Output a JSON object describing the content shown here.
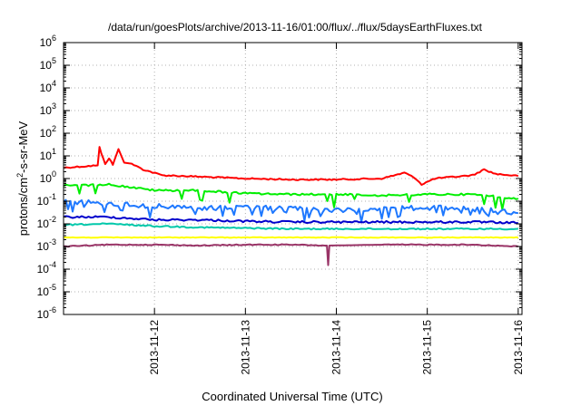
{
  "chart_data": {
    "type": "line",
    "title": "/data/run/goesPlots/archive/2013-11-16/01:00/flux/../flux/5daysEarthFluxes.txt",
    "xlabel": "Coordinated Universal Time (UTC)",
    "ylabel_main": "protons/cm",
    "ylabel_sup": "2",
    "ylabel_rest": "-s-sr-MeV",
    "yscale": "log",
    "ylim": [
      1e-06,
      1000000.0
    ],
    "xlim": [
      "2013-11-11T00:00",
      "2013-11-16T01:00"
    ],
    "grid": true,
    "x_ticks": [
      "2013-11-12",
      "2013-11-13",
      "2013-11-14",
      "2013-11-15",
      "2013-11-16"
    ],
    "y_ticks": [
      {
        "base": "10",
        "exp": "6"
      },
      {
        "base": "10",
        "exp": "5"
      },
      {
        "base": "10",
        "exp": "4"
      },
      {
        "base": "10",
        "exp": "3"
      },
      {
        "base": "10",
        "exp": "2"
      },
      {
        "base": "10",
        "exp": "1"
      },
      {
        "base": "10",
        "exp": "0"
      },
      {
        "base": "10",
        "exp": "-1"
      },
      {
        "base": "10",
        "exp": "-2"
      },
      {
        "base": "10",
        "exp": "-3"
      },
      {
        "base": "10",
        "exp": "-4"
      },
      {
        "base": "10",
        "exp": "-5"
      },
      {
        "base": "10",
        "exp": "-6"
      }
    ],
    "series": [
      {
        "color": "#ff0000",
        "points": [
          [
            "2013-11-11T00:00",
            3.0
          ],
          [
            "2013-11-11T06:00",
            3.5
          ],
          [
            "2013-11-11T09:00",
            3.8
          ],
          [
            "2013-11-11T09:30",
            25
          ],
          [
            "2013-11-11T10:00",
            12
          ],
          [
            "2013-11-11T11:00",
            4.5
          ],
          [
            "2013-11-11T12:00",
            8
          ],
          [
            "2013-11-11T13:00",
            4
          ],
          [
            "2013-11-11T14:30",
            20
          ],
          [
            "2013-11-11T16:00",
            5
          ],
          [
            "2013-11-11T18:00",
            4.5
          ],
          [
            "2013-11-11T21:00",
            2.5
          ],
          [
            "2013-11-12T02:00",
            1.4
          ],
          [
            "2013-11-12T12:00",
            1.2
          ],
          [
            "2013-11-13T00:00",
            1.0
          ],
          [
            "2013-11-13T12:00",
            0.9
          ],
          [
            "2013-11-14T00:00",
            0.9
          ],
          [
            "2013-11-14T12:00",
            1.0
          ],
          [
            "2013-11-14T18:00",
            1.8
          ],
          [
            "2013-11-14T21:00",
            1.0
          ],
          [
            "2013-11-14T22:30",
            0.55
          ],
          [
            "2013-11-15T02:00",
            1.0
          ],
          [
            "2013-11-15T12:00",
            1.4
          ],
          [
            "2013-11-15T15:00",
            2.5
          ],
          [
            "2013-11-15T18:00",
            1.6
          ],
          [
            "2013-11-16T00:00",
            1.3
          ]
        ]
      },
      {
        "color": "#00ee00",
        "points": [
          [
            "2013-11-11T00:00",
            0.5
          ],
          [
            "2013-11-11T12:00",
            0.55
          ],
          [
            "2013-11-12T00:00",
            0.3
          ],
          [
            "2013-11-12T12:00",
            0.3
          ],
          [
            "2013-11-13T00:00",
            0.22
          ],
          [
            "2013-11-13T12:00",
            0.2
          ],
          [
            "2013-11-14T00:00",
            0.2
          ],
          [
            "2013-11-14T12:00",
            0.18
          ],
          [
            "2013-11-15T00:00",
            0.2
          ],
          [
            "2013-11-15T12:00",
            0.2
          ],
          [
            "2013-11-16T00:00",
            0.13
          ]
        ]
      },
      {
        "color": "#1e78ff",
        "points": [
          [
            "2013-11-11T00:00",
            0.1
          ],
          [
            "2013-11-11T12:00",
            0.08
          ],
          [
            "2013-11-12T00:00",
            0.06
          ],
          [
            "2013-11-12T12:00",
            0.05
          ],
          [
            "2013-11-13T00:00",
            0.05
          ],
          [
            "2013-11-13T12:00",
            0.05
          ],
          [
            "2013-11-14T00:00",
            0.04
          ],
          [
            "2013-11-14T12:00",
            0.05
          ],
          [
            "2013-11-15T00:00",
            0.05
          ],
          [
            "2013-11-15T12:00",
            0.05
          ],
          [
            "2013-11-16T00:00",
            0.03
          ]
        ]
      },
      {
        "color": "#0000cc",
        "points": [
          [
            "2013-11-11T00:00",
            0.02
          ],
          [
            "2013-11-11T12:00",
            0.02
          ],
          [
            "2013-11-12T00:00",
            0.015
          ],
          [
            "2013-11-12T12:00",
            0.015
          ],
          [
            "2013-11-13T00:00",
            0.013
          ],
          [
            "2013-11-13T12:00",
            0.012
          ],
          [
            "2013-11-14T00:00",
            0.012
          ],
          [
            "2013-11-14T12:00",
            0.012
          ],
          [
            "2013-11-15T00:00",
            0.012
          ],
          [
            "2013-11-15T12:00",
            0.012
          ],
          [
            "2013-11-16T00:00",
            0.011
          ]
        ]
      },
      {
        "color": "#00c8aa",
        "points": [
          [
            "2013-11-11T00:00",
            0.009
          ],
          [
            "2013-11-11T12:00",
            0.01
          ],
          [
            "2013-11-12T00:00",
            0.008
          ],
          [
            "2013-11-12T12:00",
            0.007
          ],
          [
            "2013-11-13T00:00",
            0.0065
          ],
          [
            "2013-11-13T12:00",
            0.006
          ],
          [
            "2013-11-14T00:00",
            0.006
          ],
          [
            "2013-11-14T12:00",
            0.006
          ],
          [
            "2013-11-15T00:00",
            0.006
          ],
          [
            "2013-11-15T12:00",
            0.006
          ],
          [
            "2013-11-16T00:00",
            0.006
          ]
        ]
      },
      {
        "color": "#ffff00",
        "points": [
          [
            "2013-11-11T00:00",
            0.0025
          ],
          [
            "2013-11-12T00:00",
            0.0025
          ],
          [
            "2013-11-13T00:00",
            0.0025
          ],
          [
            "2013-11-14T00:00",
            0.0025
          ],
          [
            "2013-11-15T00:00",
            0.0025
          ],
          [
            "2013-11-16T00:00",
            0.0025
          ]
        ]
      },
      {
        "color": "#993366",
        "points": [
          [
            "2013-11-11T00:00",
            0.001
          ],
          [
            "2013-11-11T12:00",
            0.0012
          ],
          [
            "2013-11-12T00:00",
            0.0012
          ],
          [
            "2013-11-12T12:00",
            0.0011
          ],
          [
            "2013-11-13T00:00",
            0.0012
          ],
          [
            "2013-11-13T12:00",
            0.0012
          ],
          [
            "2013-11-13T21:30",
            0.0011
          ],
          [
            "2013-11-13T21:50",
            0.00015
          ],
          [
            "2013-11-13T22:10",
            0.0011
          ],
          [
            "2013-11-14T12:00",
            0.0012
          ],
          [
            "2013-11-15T00:00",
            0.0012
          ],
          [
            "2013-11-15T12:00",
            0.0012
          ],
          [
            "2013-11-16T00:00",
            0.001
          ]
        ]
      }
    ]
  }
}
